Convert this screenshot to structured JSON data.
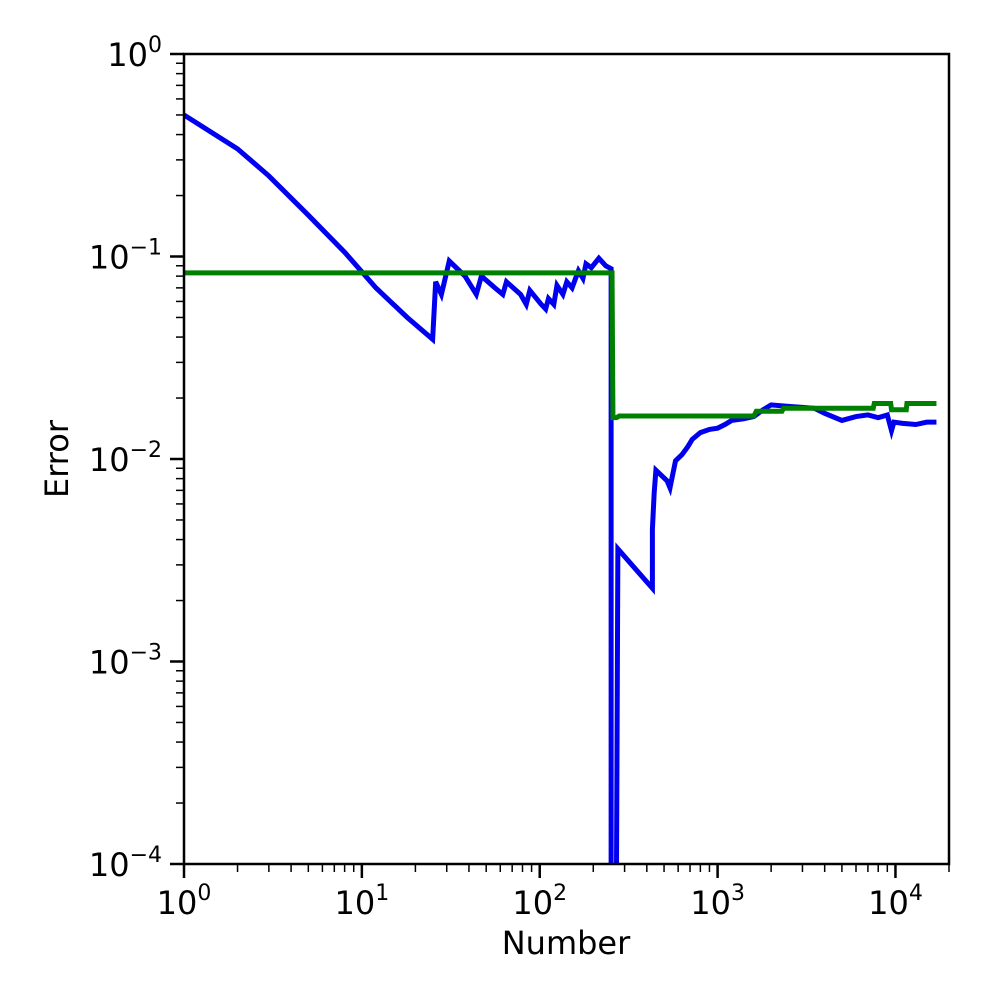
{
  "chart_data": {
    "type": "line",
    "xlabel": "Number",
    "ylabel": "Error",
    "xscale": "log",
    "yscale": "log",
    "xlim": [
      1,
      20000
    ],
    "ylim": [
      0.0001,
      1
    ],
    "grid": false,
    "x_ticks": [
      {
        "base": "10",
        "exp": "0",
        "value": 1
      },
      {
        "base": "10",
        "exp": "1",
        "value": 10
      },
      {
        "base": "10",
        "exp": "2",
        "value": 100
      },
      {
        "base": "10",
        "exp": "3",
        "value": 1000
      },
      {
        "base": "10",
        "exp": "4",
        "value": 10000
      }
    ],
    "y_ticks": [
      {
        "base": "10",
        "exp": "−4",
        "value": 0.0001
      },
      {
        "base": "10",
        "exp": "−3",
        "value": 0.001
      },
      {
        "base": "10",
        "exp": "−2",
        "value": 0.01
      },
      {
        "base": "10",
        "exp": "−1",
        "value": 0.1
      },
      {
        "base": "10",
        "exp": "0",
        "value": 1
      }
    ],
    "series": [
      {
        "color": "#0000ee",
        "points": [
          [
            1,
            0.5
          ],
          [
            2,
            0.34
          ],
          [
            3,
            0.25
          ],
          [
            5,
            0.16
          ],
          [
            8,
            0.105
          ],
          [
            12,
            0.07
          ],
          [
            18,
            0.05
          ],
          [
            25,
            0.039
          ],
          [
            26,
            0.075
          ],
          [
            28,
            0.065
          ],
          [
            31,
            0.095
          ],
          [
            38,
            0.08
          ],
          [
            44,
            0.065
          ],
          [
            47,
            0.08
          ],
          [
            56,
            0.07
          ],
          [
            62,
            0.065
          ],
          [
            65,
            0.075
          ],
          [
            78,
            0.065
          ],
          [
            84,
            0.058
          ],
          [
            88,
            0.068
          ],
          [
            102,
            0.058
          ],
          [
            108,
            0.055
          ],
          [
            112,
            0.062
          ],
          [
            120,
            0.058
          ],
          [
            125,
            0.072
          ],
          [
            135,
            0.065
          ],
          [
            142,
            0.075
          ],
          [
            152,
            0.07
          ],
          [
            165,
            0.085
          ],
          [
            175,
            0.078
          ],
          [
            182,
            0.092
          ],
          [
            195,
            0.088
          ],
          [
            215,
            0.098
          ],
          [
            235,
            0.09
          ],
          [
            252,
            0.087
          ],
          [
            252,
            8e-05
          ],
          [
            270,
            8e-05
          ],
          [
            275,
            0.0036
          ],
          [
            430,
            0.0023
          ],
          [
            430,
            0.0045
          ],
          [
            440,
            0.0068
          ],
          [
            450,
            0.0088
          ],
          [
            520,
            0.0078
          ],
          [
            540,
            0.0072
          ],
          [
            580,
            0.0098
          ],
          [
            630,
            0.0105
          ],
          [
            680,
            0.0115
          ],
          [
            720,
            0.0125
          ],
          [
            800,
            0.0135
          ],
          [
            900,
            0.014
          ],
          [
            1000,
            0.0142
          ],
          [
            1100,
            0.0148
          ],
          [
            1200,
            0.0155
          ],
          [
            1400,
            0.0158
          ],
          [
            1600,
            0.0162
          ],
          [
            1800,
            0.0175
          ],
          [
            2000,
            0.0185
          ],
          [
            2500,
            0.0182
          ],
          [
            3000,
            0.018
          ],
          [
            3500,
            0.0178
          ],
          [
            4000,
            0.0168
          ],
          [
            5000,
            0.0155
          ],
          [
            6000,
            0.0162
          ],
          [
            7000,
            0.0165
          ],
          [
            8000,
            0.016
          ],
          [
            9000,
            0.0165
          ],
          [
            9500,
            0.0138
          ],
          [
            9800,
            0.0152
          ],
          [
            11000,
            0.015
          ],
          [
            13000,
            0.0148
          ],
          [
            15000,
            0.0152
          ],
          [
            17000,
            0.0152
          ]
        ]
      },
      {
        "color": "#008000",
        "points": [
          [
            1,
            0.083
          ],
          [
            250,
            0.083
          ],
          [
            255,
            0.083
          ],
          [
            258,
            0.016
          ],
          [
            270,
            0.016
          ],
          [
            280,
            0.0163
          ],
          [
            1200,
            0.0163
          ],
          [
            1600,
            0.0163
          ],
          [
            1650,
            0.0172
          ],
          [
            2300,
            0.0172
          ],
          [
            2350,
            0.0178
          ],
          [
            7500,
            0.0178
          ],
          [
            7600,
            0.0188
          ],
          [
            9400,
            0.0188
          ],
          [
            9500,
            0.0175
          ],
          [
            11500,
            0.0175
          ],
          [
            11600,
            0.0188
          ],
          [
            17000,
            0.0188
          ]
        ]
      }
    ]
  }
}
